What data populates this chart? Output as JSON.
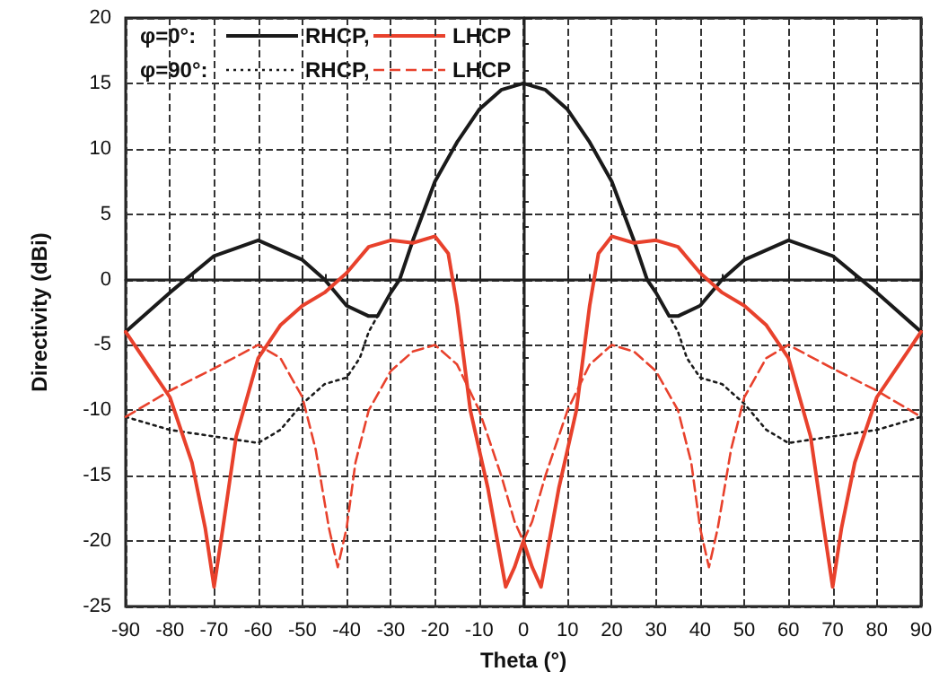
{
  "chart_data": {
    "type": "line",
    "xlabel": "Theta (°)",
    "ylabel": "Directivity (dBi)",
    "xlim": [
      -90,
      90
    ],
    "xticks": [
      -90,
      -80,
      -70,
      -60,
      -50,
      -40,
      -30,
      -20,
      -10,
      0,
      10,
      20,
      30,
      40,
      50,
      60,
      70,
      80,
      90
    ],
    "ylim": [
      -25,
      20
    ],
    "yticks": [
      -25,
      -20,
      -15,
      -10,
      -5,
      0,
      5,
      10,
      15,
      20
    ],
    "grid": true,
    "legend": "top left",
    "marker": "none",
    "annotations": [
      "φ=0°:",
      "φ=90°:"
    ],
    "series": [
      {
        "name": "RHCP,",
        "color": "#1a1a1a",
        "line_style": "solid",
        "x": [
          -90,
          -80,
          -70,
          -60,
          -50,
          -45,
          -40,
          -35,
          -33,
          -30,
          -28,
          -25,
          -20,
          -15,
          -10,
          -5,
          0,
          5,
          10,
          15,
          20,
          25,
          28,
          30,
          33,
          35,
          40,
          45,
          50,
          60,
          70,
          80,
          90
        ],
        "values": [
          -4,
          -1,
          1.8,
          3,
          1.5,
          0,
          -2,
          -2.8,
          -2.8,
          -1,
          0,
          3,
          7.5,
          10.5,
          13,
          14.5,
          15,
          14.5,
          13,
          10.5,
          7.5,
          3,
          0,
          -1,
          -2.8,
          -2.8,
          -2,
          0,
          1.5,
          3,
          1.8,
          -1,
          -4
        ]
      },
      {
        "name": "LHCP",
        "color": "#e8412c",
        "line_style": "solid",
        "x": [
          -90,
          -85,
          -80,
          -75,
          -72,
          -70,
          -68,
          -65,
          -60,
          -55,
          -50,
          -45,
          -40,
          -35,
          -30,
          -25,
          -20,
          -17,
          -15,
          -12,
          -8,
          -4,
          -2,
          0,
          2,
          4,
          8,
          12,
          15,
          17,
          20,
          25,
          30,
          35,
          40,
          45,
          50,
          55,
          60,
          65,
          68,
          70,
          72,
          75,
          80,
          85,
          90
        ],
        "values": [
          -4,
          -6.5,
          -9,
          -14,
          -19,
          -23.5,
          -19,
          -12,
          -6,
          -3.5,
          -2,
          -1,
          0.5,
          2.5,
          3,
          2.8,
          3.3,
          2,
          -2,
          -10,
          -16,
          -23.5,
          -22,
          -20,
          -22,
          -23.5,
          -16,
          -10,
          -2,
          2,
          3.3,
          2.8,
          3,
          2.5,
          0.5,
          -1,
          -2,
          -3.5,
          -6,
          -12,
          -19,
          -23.5,
          -19,
          -14,
          -9,
          -6.5,
          -4
        ]
      },
      {
        "name": "RHCP,",
        "color": "#1a1a1a",
        "line_style": "dotted",
        "x": [
          -90,
          -80,
          -70,
          -60,
          -55,
          -50,
          -45,
          -40,
          -37,
          -35,
          -33,
          -30,
          -28,
          -25,
          -20,
          -15,
          -10,
          -5,
          0,
          5,
          10,
          15,
          20,
          25,
          28,
          30,
          33,
          35,
          37,
          40,
          45,
          50,
          55,
          60,
          70,
          80,
          90
        ],
        "values": [
          -10.5,
          -11.5,
          -12,
          -12.5,
          -11.5,
          -9.5,
          -8,
          -7.5,
          -6,
          -4,
          -2.8,
          -1,
          0,
          3,
          7.5,
          10.5,
          13,
          14.5,
          15,
          14.5,
          13,
          10.5,
          7.5,
          3,
          0,
          -1,
          -2.8,
          -4,
          -6,
          -7.5,
          -8,
          -9.5,
          -11.5,
          -12.5,
          -12,
          -11.5,
          -10.5
        ]
      },
      {
        "name": "LHCP",
        "color": "#e8412c",
        "line_style": "dashed",
        "x": [
          -90,
          -80,
          -70,
          -60,
          -55,
          -50,
          -47,
          -44,
          -42,
          -40,
          -38,
          -35,
          -30,
          -25,
          -20,
          -15,
          -10,
          -5,
          -2,
          0,
          2,
          5,
          10,
          15,
          20,
          25,
          30,
          35,
          38,
          40,
          42,
          44,
          47,
          50,
          55,
          60,
          70,
          80,
          90
        ],
        "values": [
          -10.5,
          -8.5,
          -6.8,
          -5,
          -6,
          -9,
          -13,
          -19,
          -22,
          -19,
          -14,
          -10,
          -7,
          -5.5,
          -5,
          -6.5,
          -10,
          -15,
          -18.5,
          -20,
          -18.5,
          -15,
          -10,
          -6.5,
          -5,
          -5.5,
          -7,
          -10,
          -14,
          -19,
          -22,
          -19,
          -13,
          -9,
          -6,
          -5,
          -6.8,
          -8.5,
          -10.5
        ]
      }
    ]
  }
}
